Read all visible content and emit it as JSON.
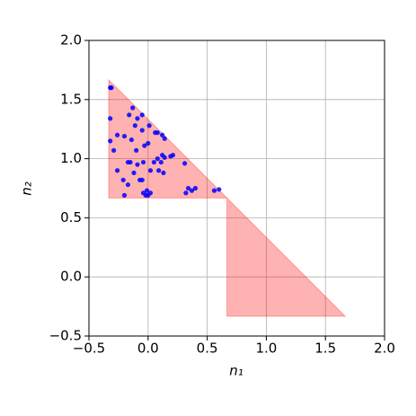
{
  "chart_data": {
    "type": "scatter",
    "xlabel": "n₁",
    "ylabel": "n₂",
    "xlim": [
      -0.5,
      2.0
    ],
    "ylim": [
      -0.5,
      2.0
    ],
    "xticks": [
      {
        "value": -0.5,
        "label": "−0.5"
      },
      {
        "value": 0,
        "label": "0.0"
      },
      0.5,
      {
        "value": 1,
        "label": "1.0"
      },
      1.5,
      {
        "value": 2,
        "label": "2.0"
      }
    ],
    "yticks": [
      {
        "value": -0.5,
        "label": "−0.5"
      },
      {
        "value": 0,
        "label": "0.0"
      },
      0.5,
      {
        "value": 1,
        "label": "1.0"
      },
      1.5,
      {
        "value": 2,
        "label": "2.0"
      }
    ],
    "grid": true,
    "regions": [
      {
        "color": "#ff0000",
        "x": [
          -0.333,
          -0.333,
          0.667
        ],
        "y": [
          0.667,
          1.667,
          0.667
        ]
      },
      {
        "color": "#ff0000",
        "x": [
          0.667,
          0.667,
          1.667
        ],
        "y": [
          0.667,
          -0.333,
          -0.333
        ]
      }
    ],
    "series": [
      {
        "color": "#0000ff",
        "x": [
          -0.32,
          -0.31,
          -0.32,
          -0.32,
          -0.29,
          -0.26,
          -0.26,
          -0.2,
          -0.21,
          -0.2,
          -0.17,
          -0.17,
          -0.16,
          -0.15,
          -0.14,
          -0.13,
          -0.12,
          -0.11,
          -0.1,
          -0.09,
          -0.09,
          -0.07,
          -0.05,
          -0.05,
          -0.05,
          -0.04,
          -0.04,
          -0.03,
          -0.02,
          -0.01,
          0.0,
          0.01,
          0.0,
          0.02,
          0.02,
          0.05,
          0.06,
          0.08,
          0.08,
          0.09,
          0.11,
          0.12,
          0.12,
          0.14,
          0.13,
          0.14,
          0.19,
          0.21,
          0.31,
          0.32,
          0.34,
          0.37,
          0.4,
          0.56,
          0.6
        ],
        "values": [
          1.6,
          1.6,
          1.34,
          1.15,
          1.07,
          1.2,
          0.9,
          1.19,
          0.82,
          0.69,
          0.78,
          0.97,
          1.37,
          0.97,
          1.16,
          1.43,
          0.88,
          1.28,
          1.07,
          1.34,
          0.95,
          0.82,
          0.82,
          1.24,
          1.37,
          0.97,
          0.71,
          1.11,
          0.69,
          0.73,
          0.69,
          1.28,
          1.13,
          0.71,
          0.9,
          0.97,
          1.22,
          1.22,
          1.0,
          0.9,
          0.97,
          1.03,
          1.2,
          1.17,
          0.88,
          1.01,
          1.02,
          1.03,
          0.96,
          0.71,
          0.75,
          0.73,
          0.75,
          0.73,
          0.74
        ]
      }
    ]
  }
}
